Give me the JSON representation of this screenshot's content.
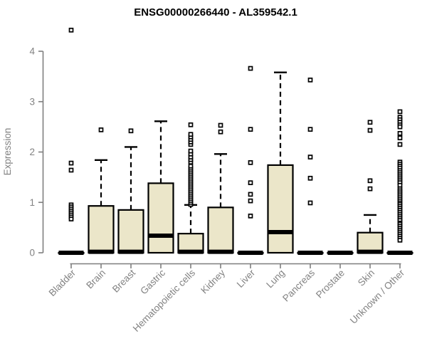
{
  "chart_data": {
    "type": "boxplot",
    "title": "ENSG00000266440 - AL359542.1",
    "ylabel": "Expression",
    "xlabel": "",
    "ylim": [
      0,
      4
    ],
    "yticks": [
      0,
      1,
      2,
      3,
      4
    ],
    "grid": false,
    "legend": "none",
    "categories": [
      "Bladder",
      "Brain",
      "Breast",
      "Gastric",
      "Hematopoietic cells",
      "Kidney",
      "Liver",
      "Lung",
      "Pancreas",
      "Prostate",
      "Skin",
      "Unknown / Other"
    ],
    "series": [
      {
        "name": "Bladder",
        "q1": 0,
        "median": 0,
        "q3": 0,
        "whisker_low": 0,
        "whisker_high": 0,
        "outliers": [
          4.42,
          1.78,
          1.64,
          0.95,
          0.91,
          0.87,
          0.83,
          0.79,
          0.75,
          0.71,
          0.67
        ]
      },
      {
        "name": "Brain",
        "q1": 0,
        "median": 0.02,
        "q3": 0.93,
        "whisker_low": 0,
        "whisker_high": 1.84,
        "outliers": [
          2.44
        ]
      },
      {
        "name": "Breast",
        "q1": 0,
        "median": 0.02,
        "q3": 0.85,
        "whisker_low": 0,
        "whisker_high": 2.1,
        "outliers": [
          2.42
        ]
      },
      {
        "name": "Gastric",
        "q1": 0,
        "median": 0.34,
        "q3": 1.38,
        "whisker_low": 0,
        "whisker_high": 2.61,
        "outliers": []
      },
      {
        "name": "Hematopoietic cells",
        "q1": 0,
        "median": 0.02,
        "q3": 0.38,
        "whisker_low": 0,
        "whisker_high": 0.95,
        "outliers": [
          0.96,
          1.0,
          1.04,
          1.08,
          1.12,
          1.16,
          1.2,
          1.24,
          1.28,
          1.32,
          1.36,
          1.4,
          1.44,
          1.48,
          1.52,
          1.56,
          1.6,
          1.64,
          1.68,
          1.72,
          1.8,
          1.85,
          1.9,
          1.96,
          2.02,
          2.15,
          2.2,
          2.25,
          2.3,
          2.35,
          2.54
        ]
      },
      {
        "name": "Kidney",
        "q1": 0,
        "median": 0.02,
        "q3": 0.9,
        "whisker_low": 0,
        "whisker_high": 1.96,
        "outliers": [
          2.53,
          2.4
        ]
      },
      {
        "name": "Liver",
        "q1": 0,
        "median": 0,
        "q3": 0,
        "whisker_low": 0,
        "whisker_high": 0,
        "outliers": [
          3.66,
          2.45,
          1.79,
          1.39,
          1.16,
          1.03,
          0.73
        ]
      },
      {
        "name": "Lung",
        "q1": 0,
        "median": 0.41,
        "q3": 1.74,
        "whisker_low": 0,
        "whisker_high": 3.58,
        "outliers": []
      },
      {
        "name": "Pancreas",
        "q1": 0,
        "median": 0,
        "q3": 0,
        "whisker_low": 0,
        "whisker_high": 0,
        "outliers": [
          3.43,
          2.45,
          1.9,
          1.48,
          0.99
        ]
      },
      {
        "name": "Prostate",
        "q1": 0,
        "median": 0,
        "q3": 0,
        "whisker_low": 0,
        "whisker_high": 0,
        "outliers": []
      },
      {
        "name": "Skin",
        "q1": 0,
        "median": 0.02,
        "q3": 0.4,
        "whisker_low": 0,
        "whisker_high": 0.75,
        "outliers": [
          2.59,
          2.43,
          1.43,
          1.27
        ]
      },
      {
        "name": "Unknown / Other",
        "q1": 0,
        "median": 0,
        "q3": 0,
        "whisker_low": 0,
        "whisker_high": 0,
        "outliers": [
          2.8,
          2.69,
          2.64,
          2.59,
          2.54,
          2.5,
          2.37,
          2.28,
          2.15,
          1.8,
          1.76,
          1.72,
          1.68,
          1.63,
          1.59,
          1.55,
          1.51,
          1.47,
          1.43,
          1.39,
          1.34,
          1.27,
          1.23,
          1.19,
          1.15,
          1.11,
          1.07,
          1.03,
          0.99,
          0.96,
          0.92,
          0.88,
          0.84,
          0.8,
          0.76,
          0.72,
          0.68,
          0.64,
          0.59,
          0.57,
          0.53,
          0.49,
          0.45,
          0.41,
          0.37,
          0.33,
          0.29,
          0.25
        ]
      }
    ],
    "colors": {
      "background": "#FFFFFF",
      "box_fill": "#EBE6C9",
      "box_border": "#000000",
      "median": "#000000",
      "whisker": "#000000",
      "outlier_fill": "#FFFFFF",
      "outlier_border": "#000000",
      "axis_line": "#7F7F7F",
      "axis_text": "#828282",
      "title_text": "#000000"
    }
  }
}
